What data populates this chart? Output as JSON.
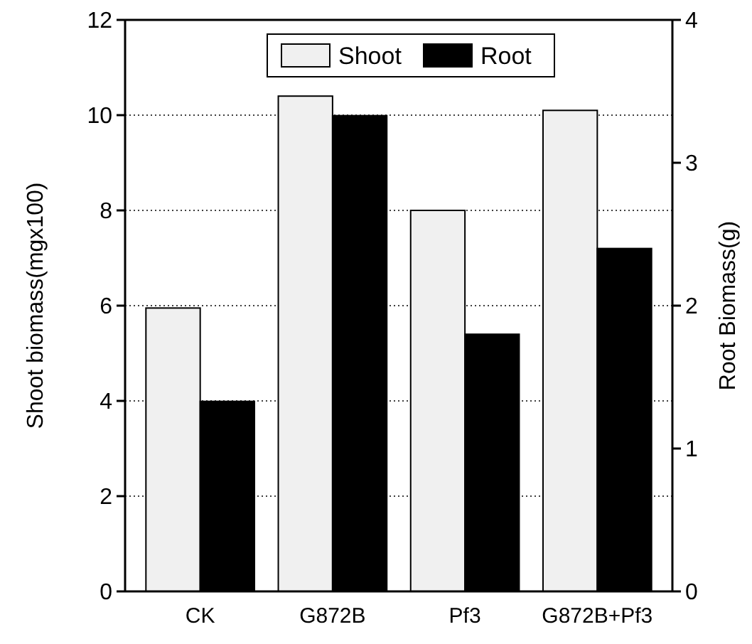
{
  "chart_data": {
    "type": "bar",
    "categories": [
      "CK",
      "G872B",
      "Pf3",
      "G872B+Pf3"
    ],
    "series": [
      {
        "name": "Shoot",
        "color": "#f0f0f0",
        "values": [
          5.95,
          10.4,
          8,
          10.1
        ]
      },
      {
        "name": "Root",
        "color": "#000000",
        "axis": "y2",
        "values": [
          1.33,
          3.33,
          1.8,
          2.4
        ]
      }
    ],
    "ylabel": "Shoot biomass(mgx100)",
    "y2label": "Root Biomass(g)",
    "ylim": [
      0,
      12
    ],
    "yticks": [
      0,
      2,
      4,
      6,
      8,
      10,
      12
    ],
    "y2lim": [
      0,
      4
    ],
    "y2ticks": [
      0,
      1,
      2,
      3,
      4
    ],
    "grid": "y",
    "legend": "top"
  }
}
